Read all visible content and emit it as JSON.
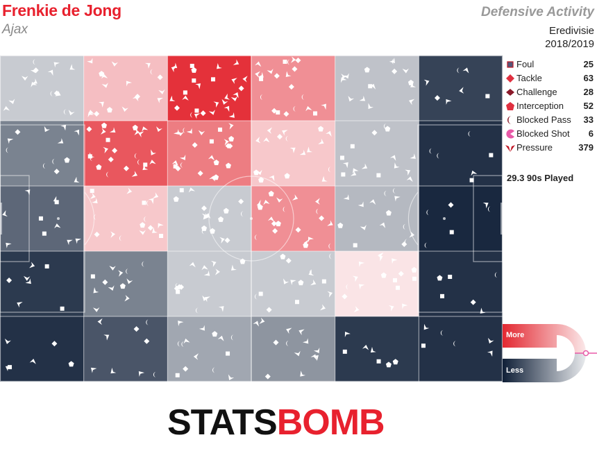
{
  "header": {
    "player": "Frenkie de Jong",
    "team": "Ajax",
    "report": "Defensive Activity",
    "competition": "Eredivisie",
    "season": "2018/2019"
  },
  "legend": [
    {
      "label": "Foul",
      "count": "25",
      "icon": "square-icon",
      "color": "#555577"
    },
    {
      "label": "Tackle",
      "count": "63",
      "icon": "diamond-icon",
      "color": "#e03040"
    },
    {
      "label": "Challenge",
      "count": "28",
      "icon": "diamond-icon",
      "color": "#8b1a2a"
    },
    {
      "label": "Interception",
      "count": "52",
      "icon": "pentagon-icon",
      "color": "#e03040"
    },
    {
      "label": "Blocked Pass",
      "count": "33",
      "icon": "crescent-icon",
      "color": "#8b1a2a"
    },
    {
      "label": "Blocked Shot",
      "count": "6",
      "icon": "pacman-icon",
      "color": "#e85aa8"
    },
    {
      "label": "Pressure",
      "count": "379",
      "icon": "arrowhead-icon",
      "color": "#c01a28"
    }
  ],
  "played": "29.3 90s Played",
  "scale": {
    "more": "More",
    "less": "Less"
  },
  "logo": {
    "part1": "STATS",
    "part2": "BOMB"
  },
  "colors": {
    "hot": "#e32831",
    "neutral": "#d2d4d9",
    "cold": "#0f1f37"
  },
  "chart_data": {
    "type": "heatmap",
    "title": "Defensive Activity",
    "rows": 5,
    "cols": 6,
    "description_scale": "relative intensity from -1 (less) to 1 (more)",
    "intensity": [
      [
        -0.05,
        0.2,
        0.95,
        0.45,
        -0.1,
        -0.8
      ],
      [
        -0.45,
        0.75,
        0.55,
        0.15,
        -0.1,
        -0.9
      ],
      [
        -0.6,
        0.15,
        -0.05,
        0.45,
        -0.15,
        -0.95
      ],
      [
        -0.85,
        -0.45,
        -0.05,
        -0.05,
        0.0,
        -0.9
      ],
      [
        -0.9,
        -0.7,
        -0.25,
        -0.35,
        -0.85,
        -0.9
      ]
    ],
    "events": {
      "Foul": 25,
      "Tackle": 63,
      "Challenge": 28,
      "Interception": 52,
      "Blocked Pass": 33,
      "Blocked Shot": 6,
      "Pressure": 379
    },
    "minutes_90s": 29.3
  }
}
